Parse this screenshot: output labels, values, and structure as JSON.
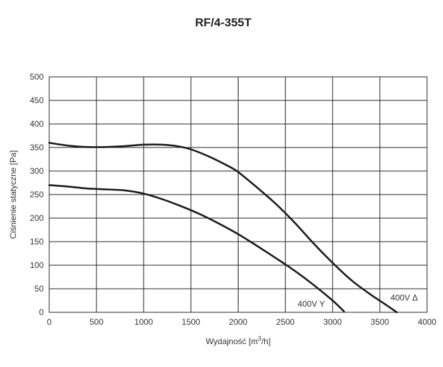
{
  "chart_data": {
    "type": "line",
    "title": "RF/4-355T",
    "xlabel_main": "Wydajność [m",
    "xlabel_sup": "3",
    "xlabel_end": "/h]",
    "ylabel": "Ciśnienie statyczne [Pa]",
    "xlim": [
      0,
      4000
    ],
    "ylim": [
      0,
      500
    ],
    "xticks": [
      "0",
      "500",
      "1000",
      "1500",
      "2000",
      "2500",
      "3000",
      "3500",
      "4000"
    ],
    "yticks": [
      "0",
      "50",
      "100",
      "150",
      "200",
      "250",
      "300",
      "350",
      "400",
      "450",
      "500"
    ],
    "grid": true,
    "series": [
      {
        "name": "400V Δ",
        "points": [
          [
            0,
            360
          ],
          [
            200,
            354
          ],
          [
            400,
            351
          ],
          [
            600,
            351
          ],
          [
            800,
            353
          ],
          [
            1000,
            356
          ],
          [
            1200,
            356
          ],
          [
            1350,
            353
          ],
          [
            1500,
            346
          ],
          [
            1700,
            330
          ],
          [
            1900,
            310
          ],
          [
            2000,
            298
          ],
          [
            2200,
            265
          ],
          [
            2400,
            230
          ],
          [
            2600,
            190
          ],
          [
            2800,
            146
          ],
          [
            3000,
            105
          ],
          [
            3200,
            68
          ],
          [
            3400,
            38
          ],
          [
            3550,
            18
          ],
          [
            3680,
            0
          ]
        ]
      },
      {
        "name": "400V Y",
        "points": [
          [
            0,
            270
          ],
          [
            200,
            267
          ],
          [
            400,
            263
          ],
          [
            600,
            261
          ],
          [
            800,
            259
          ],
          [
            1000,
            252
          ],
          [
            1200,
            240
          ],
          [
            1400,
            225
          ],
          [
            1600,
            208
          ],
          [
            1800,
            188
          ],
          [
            2000,
            166
          ],
          [
            2200,
            141
          ],
          [
            2400,
            115
          ],
          [
            2600,
            88
          ],
          [
            2800,
            58
          ],
          [
            3000,
            25
          ],
          [
            3120,
            2
          ]
        ]
      }
    ]
  }
}
